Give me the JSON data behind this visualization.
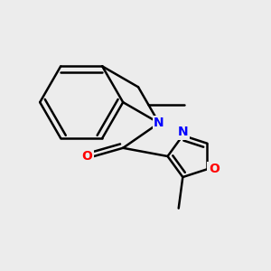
{
  "background_color": "#ececec",
  "bond_color": "#000000",
  "N_color": "#0000ff",
  "O_color": "#ff0000",
  "bond_width": 1.8,
  "figsize": [
    3.0,
    3.0
  ],
  "dpi": 100,
  "xlim": [
    -0.2,
    2.6
  ],
  "ylim": [
    -1.6,
    1.6
  ]
}
